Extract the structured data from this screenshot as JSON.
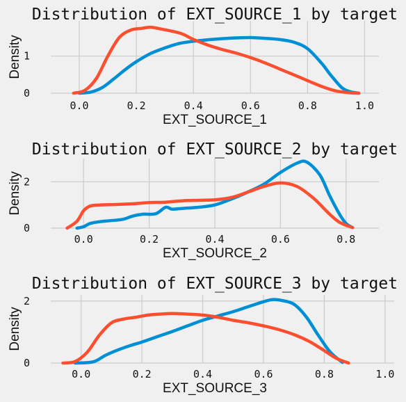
{
  "colors": {
    "background": "#f0f0f0",
    "grid": "#cbcbcb",
    "target_0": "#008fd5",
    "target_1": "#fc4f30"
  },
  "chart_data": [
    {
      "type": "line",
      "title": "Distribution of EXT_SOURCE_1 by target",
      "xlabel": "EXT_SOURCE_1",
      "ylabel": "Density",
      "xlim": [
        -0.1,
        1.05
      ],
      "ylim": [
        0,
        1.95
      ],
      "xticks": [
        0.0,
        0.2,
        0.4,
        0.6,
        0.8,
        1.0
      ],
      "xtick_labels": [
        "0.0",
        "0.2",
        "0.4",
        "0.6",
        "0.8",
        "1.0"
      ],
      "yticks": [
        0,
        1
      ],
      "ytick_labels": [
        "0",
        "1"
      ],
      "grid": true,
      "series": [
        {
          "color": "#008fd5",
          "x": [
            0.0,
            0.04,
            0.08,
            0.12,
            0.16,
            0.2,
            0.25,
            0.3,
            0.35,
            0.4,
            0.45,
            0.5,
            0.55,
            0.6,
            0.65,
            0.7,
            0.75,
            0.8,
            0.85,
            0.88,
            0.92,
            0.95,
            0.98
          ],
          "y": [
            0.0,
            0.03,
            0.15,
            0.38,
            0.63,
            0.85,
            1.07,
            1.22,
            1.34,
            1.4,
            1.44,
            1.47,
            1.49,
            1.5,
            1.48,
            1.45,
            1.38,
            1.2,
            0.8,
            0.5,
            0.15,
            0.04,
            0.0
          ]
        },
        {
          "color": "#fc4f30",
          "x": [
            -0.02,
            0.02,
            0.06,
            0.1,
            0.14,
            0.18,
            0.22,
            0.25,
            0.28,
            0.32,
            0.36,
            0.4,
            0.45,
            0.5,
            0.55,
            0.6,
            0.65,
            0.7,
            0.75,
            0.8,
            0.85,
            0.9,
            0.95,
            0.98
          ],
          "y": [
            0.0,
            0.08,
            0.4,
            1.0,
            1.5,
            1.7,
            1.75,
            1.78,
            1.74,
            1.68,
            1.6,
            1.45,
            1.3,
            1.18,
            1.08,
            0.96,
            0.82,
            0.66,
            0.5,
            0.34,
            0.18,
            0.06,
            0.01,
            0.0
          ]
        }
      ]
    },
    {
      "type": "line",
      "title": "Distribution of EXT_SOURCE_2 by target",
      "xlabel": "EXT_SOURCE_2",
      "ylabel": "Density",
      "xlim": [
        -0.1,
        0.9
      ],
      "ylim": [
        0,
        3.0
      ],
      "xticks": [
        0.0,
        0.2,
        0.4,
        0.6,
        0.8
      ],
      "xtick_labels": [
        "0.0",
        "0.2",
        "0.4",
        "0.6",
        "0.8"
      ],
      "yticks": [
        0,
        2
      ],
      "ytick_labels": [
        "0",
        "2"
      ],
      "grid": true,
      "series": [
        {
          "color": "#008fd5",
          "x": [
            -0.02,
            0.0,
            0.02,
            0.05,
            0.08,
            0.12,
            0.15,
            0.18,
            0.22,
            0.25,
            0.27,
            0.3,
            0.35,
            0.4,
            0.45,
            0.5,
            0.55,
            0.6,
            0.65,
            0.68,
            0.72,
            0.75,
            0.78,
            0.8,
            0.82
          ],
          "y": [
            0.0,
            0.06,
            0.2,
            0.28,
            0.32,
            0.38,
            0.52,
            0.6,
            0.62,
            0.9,
            0.82,
            0.85,
            0.9,
            1.0,
            1.25,
            1.55,
            1.9,
            2.4,
            2.8,
            2.85,
            2.3,
            1.4,
            0.6,
            0.2,
            0.02
          ]
        },
        {
          "color": "#fc4f30",
          "x": [
            -0.05,
            -0.02,
            0.0,
            0.02,
            0.05,
            0.1,
            0.15,
            0.2,
            0.25,
            0.3,
            0.35,
            0.4,
            0.45,
            0.5,
            0.55,
            0.6,
            0.65,
            0.7,
            0.75,
            0.78,
            0.82
          ],
          "y": [
            0.0,
            0.3,
            0.75,
            0.95,
            1.0,
            1.02,
            1.05,
            1.1,
            1.12,
            1.18,
            1.2,
            1.22,
            1.32,
            1.55,
            1.8,
            1.95,
            1.8,
            1.3,
            0.6,
            0.25,
            0.02
          ]
        }
      ]
    },
    {
      "type": "line",
      "title": "Distribution of EXT_SOURCE_3 by target",
      "xlabel": "EXT_SOURCE_3",
      "ylabel": "Density",
      "xlim": [
        -0.1,
        1.03
      ],
      "ylim": [
        0,
        2.2
      ],
      "xticks": [
        0.0,
        0.2,
        0.4,
        0.6,
        0.8,
        1.0
      ],
      "xtick_labels": [
        "0.0",
        "0.2",
        "0.4",
        "0.6",
        "0.8",
        "1.0"
      ],
      "yticks": [
        0,
        2
      ],
      "ytick_labels": [
        "0",
        "2"
      ],
      "grid": true,
      "series": [
        {
          "color": "#008fd5",
          "x": [
            -0.02,
            0.04,
            0.08,
            0.12,
            0.16,
            0.2,
            0.25,
            0.3,
            0.35,
            0.4,
            0.45,
            0.5,
            0.55,
            0.6,
            0.63,
            0.66,
            0.7,
            0.74,
            0.78,
            0.82,
            0.86
          ],
          "y": [
            0.0,
            0.04,
            0.25,
            0.42,
            0.56,
            0.68,
            0.85,
            1.02,
            1.2,
            1.38,
            1.52,
            1.66,
            1.82,
            1.98,
            2.05,
            2.02,
            1.9,
            1.5,
            0.9,
            0.35,
            0.02
          ]
        },
        {
          "color": "#fc4f30",
          "x": [
            -0.06,
            -0.02,
            0.02,
            0.06,
            0.1,
            0.14,
            0.18,
            0.22,
            0.26,
            0.3,
            0.35,
            0.4,
            0.45,
            0.5,
            0.55,
            0.6,
            0.65,
            0.7,
            0.75,
            0.8,
            0.84,
            0.88
          ],
          "y": [
            0.0,
            0.05,
            0.35,
            0.9,
            1.3,
            1.42,
            1.48,
            1.55,
            1.58,
            1.6,
            1.58,
            1.55,
            1.48,
            1.38,
            1.3,
            1.2,
            1.08,
            0.92,
            0.7,
            0.4,
            0.15,
            0.0
          ]
        }
      ]
    }
  ]
}
